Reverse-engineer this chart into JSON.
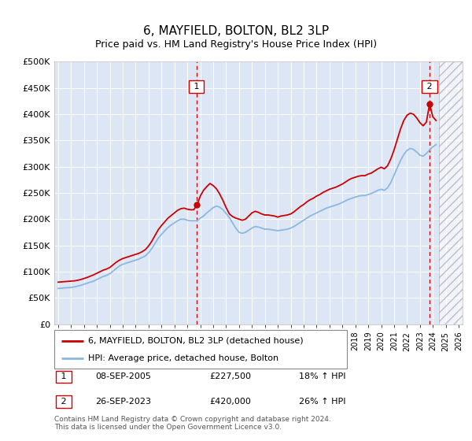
{
  "title": "6, MAYFIELD, BOLTON, BL2 3LP",
  "subtitle": "Price paid vs. HM Land Registry's House Price Index (HPI)",
  "ylim": [
    0,
    500000
  ],
  "yticks": [
    0,
    50000,
    100000,
    150000,
    200000,
    250000,
    300000,
    350000,
    400000,
    450000,
    500000
  ],
  "xlim_start": 1994.7,
  "xlim_end": 2026.3,
  "plot_bg_color": "#dce6f5",
  "hpi_color": "#8bb8e0",
  "price_color": "#cc0000",
  "point1_x": 2005.69,
  "point1_y": 227500,
  "point2_x": 2023.74,
  "point2_y": 420000,
  "vline_color": "#cc0000",
  "legend_label1": "6, MAYFIELD, BOLTON, BL2 3LP (detached house)",
  "legend_label2": "HPI: Average price, detached house, Bolton",
  "annotation1_date": "08-SEP-2005",
  "annotation1_price": "£227,500",
  "annotation1_hpi": "18% ↑ HPI",
  "annotation2_date": "26-SEP-2023",
  "annotation2_price": "£420,000",
  "annotation2_hpi": "26% ↑ HPI",
  "footer": "Contains HM Land Registry data © Crown copyright and database right 2024.\nThis data is licensed under the Open Government Licence v3.0.",
  "hpi_data_x": [
    1995.0,
    1995.25,
    1995.5,
    1995.75,
    1996.0,
    1996.25,
    1996.5,
    1996.75,
    1997.0,
    1997.25,
    1997.5,
    1997.75,
    1998.0,
    1998.25,
    1998.5,
    1998.75,
    1999.0,
    1999.25,
    1999.5,
    1999.75,
    2000.0,
    2000.25,
    2000.5,
    2000.75,
    2001.0,
    2001.25,
    2001.5,
    2001.75,
    2002.0,
    2002.25,
    2002.5,
    2002.75,
    2003.0,
    2003.25,
    2003.5,
    2003.75,
    2004.0,
    2004.25,
    2004.5,
    2004.75,
    2005.0,
    2005.25,
    2005.5,
    2005.75,
    2006.0,
    2006.25,
    2006.5,
    2006.75,
    2007.0,
    2007.25,
    2007.5,
    2007.75,
    2008.0,
    2008.25,
    2008.5,
    2008.75,
    2009.0,
    2009.25,
    2009.5,
    2009.75,
    2010.0,
    2010.25,
    2010.5,
    2010.75,
    2011.0,
    2011.25,
    2011.5,
    2011.75,
    2012.0,
    2012.25,
    2012.5,
    2012.75,
    2013.0,
    2013.25,
    2013.5,
    2013.75,
    2014.0,
    2014.25,
    2014.5,
    2014.75,
    2015.0,
    2015.25,
    2015.5,
    2015.75,
    2016.0,
    2016.25,
    2016.5,
    2016.75,
    2017.0,
    2017.25,
    2017.5,
    2017.75,
    2018.0,
    2018.25,
    2018.5,
    2018.75,
    2019.0,
    2019.25,
    2019.5,
    2019.75,
    2020.0,
    2020.25,
    2020.5,
    2020.75,
    2021.0,
    2021.25,
    2021.5,
    2021.75,
    2022.0,
    2022.25,
    2022.5,
    2022.75,
    2023.0,
    2023.25,
    2023.5,
    2023.75,
    2024.0,
    2024.25
  ],
  "hpi_data_y": [
    68000,
    68500,
    69000,
    69500,
    70000,
    71000,
    72500,
    74000,
    76000,
    78000,
    80000,
    82000,
    85000,
    88000,
    91000,
    93000,
    96000,
    101000,
    106000,
    111000,
    114000,
    116000,
    118000,
    120000,
    122000,
    124000,
    127000,
    130000,
    136000,
    144000,
    154000,
    164000,
    171000,
    178000,
    184000,
    189000,
    193000,
    197000,
    200000,
    200000,
    198000,
    197000,
    197000,
    197000,
    202000,
    206000,
    212000,
    217000,
    222000,
    225000,
    223000,
    218000,
    211000,
    203000,
    193000,
    183000,
    175000,
    173000,
    175000,
    179000,
    183000,
    186000,
    185000,
    183000,
    181000,
    181000,
    180000,
    179000,
    178000,
    179000,
    180000,
    181000,
    183000,
    186000,
    190000,
    194000,
    198000,
    202000,
    206000,
    209000,
    212000,
    215000,
    218000,
    221000,
    223000,
    225000,
    227000,
    229000,
    232000,
    235000,
    238000,
    240000,
    242000,
    244000,
    245000,
    245000,
    247000,
    249000,
    252000,
    255000,
    257000,
    255000,
    260000,
    270000,
    284000,
    298000,
    312000,
    323000,
    331000,
    335000,
    333000,
    328000,
    322000,
    320000,
    325000,
    332000,
    338000,
    342000
  ],
  "price_data_x": [
    1995.0,
    1995.25,
    1995.5,
    1995.75,
    1996.0,
    1996.25,
    1996.5,
    1996.75,
    1997.0,
    1997.25,
    1997.5,
    1997.75,
    1998.0,
    1998.25,
    1998.5,
    1998.75,
    1999.0,
    1999.25,
    1999.5,
    1999.75,
    2000.0,
    2000.25,
    2000.5,
    2000.75,
    2001.0,
    2001.25,
    2001.5,
    2001.75,
    2002.0,
    2002.25,
    2002.5,
    2002.75,
    2003.0,
    2003.25,
    2003.5,
    2003.75,
    2004.0,
    2004.25,
    2004.5,
    2004.75,
    2005.0,
    2005.25,
    2005.5,
    2005.75,
    2006.0,
    2006.25,
    2006.5,
    2006.75,
    2007.0,
    2007.25,
    2007.5,
    2007.75,
    2008.0,
    2008.25,
    2008.5,
    2008.75,
    2009.0,
    2009.25,
    2009.5,
    2009.75,
    2010.0,
    2010.25,
    2010.5,
    2010.75,
    2011.0,
    2011.25,
    2011.5,
    2011.75,
    2012.0,
    2012.25,
    2012.5,
    2012.75,
    2013.0,
    2013.25,
    2013.5,
    2013.75,
    2014.0,
    2014.25,
    2014.5,
    2014.75,
    2015.0,
    2015.25,
    2015.5,
    2015.75,
    2016.0,
    2016.25,
    2016.5,
    2016.75,
    2017.0,
    2017.25,
    2017.5,
    2017.75,
    2018.0,
    2018.25,
    2018.5,
    2018.75,
    2019.0,
    2019.25,
    2019.5,
    2019.75,
    2020.0,
    2020.25,
    2020.5,
    2020.75,
    2021.0,
    2021.25,
    2021.5,
    2021.75,
    2022.0,
    2022.25,
    2022.5,
    2022.75,
    2023.0,
    2023.25,
    2023.5,
    2023.75,
    2024.0,
    2024.25
  ],
  "price_data_y": [
    80000,
    80500,
    81000,
    81500,
    82000,
    82500,
    83500,
    85000,
    87000,
    89000,
    91500,
    94000,
    97000,
    100000,
    103000,
    105000,
    108000,
    113000,
    118000,
    122000,
    125000,
    127000,
    129000,
    131000,
    133000,
    135000,
    138000,
    142000,
    149000,
    158000,
    169000,
    180000,
    188000,
    195000,
    202000,
    207000,
    212000,
    217000,
    220000,
    221000,
    219000,
    218000,
    218000,
    227500,
    244000,
    255000,
    262000,
    268000,
    264000,
    258000,
    248000,
    236000,
    222000,
    210000,
    205000,
    202000,
    200000,
    198000,
    200000,
    206000,
    212000,
    215000,
    213000,
    210000,
    208000,
    208000,
    207000,
    206000,
    204000,
    206000,
    207000,
    208000,
    210000,
    214000,
    219000,
    224000,
    228000,
    233000,
    237000,
    240000,
    244000,
    247000,
    251000,
    254000,
    257000,
    259000,
    261000,
    264000,
    267000,
    271000,
    275000,
    278000,
    280000,
    282000,
    283000,
    283000,
    286000,
    288000,
    292000,
    296000,
    299000,
    296000,
    302000,
    315000,
    332000,
    352000,
    372000,
    388000,
    398000,
    402000,
    400000,
    393000,
    384000,
    378000,
    385000,
    420000,
    395000,
    388000
  ]
}
